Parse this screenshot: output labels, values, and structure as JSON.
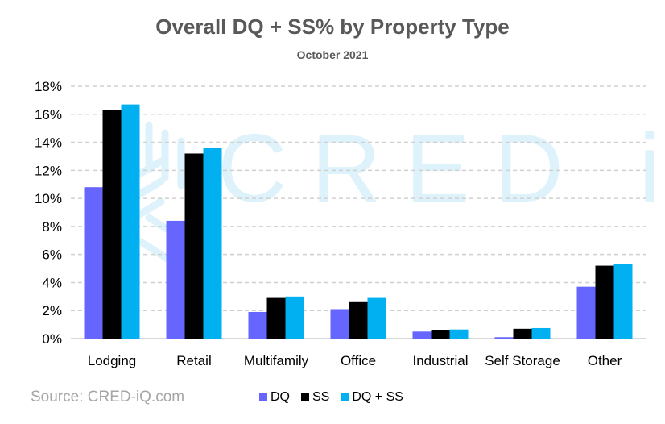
{
  "chart_data": {
    "type": "bar",
    "title": "Overall DQ + SS% by Property Type",
    "subtitle": "October 2021",
    "categories": [
      "Lodging",
      "Retail",
      "Multifamily",
      "Office",
      "Industrial",
      "Self Storage",
      "Other"
    ],
    "series": [
      {
        "name": "DQ",
        "color": "#6666ff",
        "values": [
          10.8,
          8.4,
          1.9,
          2.1,
          0.5,
          0.1,
          3.7
        ]
      },
      {
        "name": "SS",
        "color": "#000000",
        "values": [
          16.3,
          13.2,
          2.9,
          2.6,
          0.6,
          0.7,
          5.2
        ]
      },
      {
        "name": "DQ + SS",
        "color": "#00b0f0",
        "values": [
          16.7,
          13.6,
          3.0,
          2.9,
          0.65,
          0.75,
          5.3
        ]
      }
    ],
    "ylim": [
      0,
      18
    ],
    "yticks": [
      "0%",
      "2%",
      "4%",
      "6%",
      "8%",
      "10%",
      "12%",
      "14%",
      "16%",
      "18%"
    ],
    "grid": true,
    "legend_position": "bottom",
    "source": "Source:   CRED-iQ.com",
    "watermark": "CRED iQ"
  }
}
